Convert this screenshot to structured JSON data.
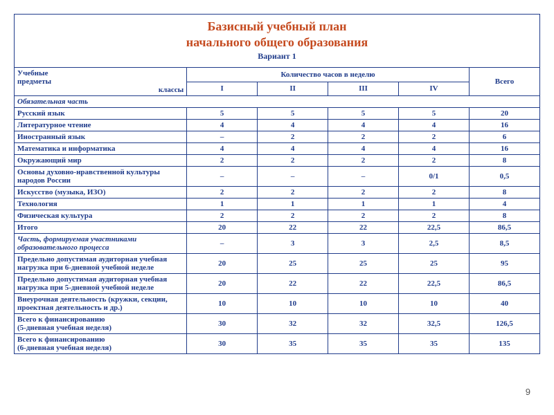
{
  "title_line1": "Базисный учебный  план",
  "title_line2": "начального общего образования",
  "variant": "Вариант  1",
  "header": {
    "subjects_label_1": "Учебные",
    "subjects_label_2": "предметы",
    "classes_label": "классы",
    "hours_label": "Количество часов в неделю",
    "total_label": "Всего",
    "cols": [
      "I",
      "II",
      "III",
      "IV"
    ]
  },
  "section1": "Обязательная часть",
  "rows": [
    {
      "label": "Русский язык",
      "v": [
        "5",
        "5",
        "5",
        "5",
        "20"
      ]
    },
    {
      "label": "Литературное чтение",
      "v": [
        "4",
        "4",
        "4",
        "4",
        "16"
      ]
    },
    {
      "label": "Иностранный язык",
      "v": [
        "–",
        "2",
        "2",
        "2",
        "6"
      ]
    },
    {
      "label": "Математика и информатика",
      "v": [
        "4",
        "4",
        "4",
        "4",
        "16"
      ]
    },
    {
      "label": "Окружающий мир",
      "v": [
        "2",
        "2",
        "2",
        "2",
        "8"
      ]
    },
    {
      "label": "Основы духовно-нравственной культуры народов России",
      "v": [
        "–",
        "–",
        "–",
        "0/1",
        "0,5"
      ]
    },
    {
      "label": "Искусство (музыка, ИЗО)",
      "v": [
        "2",
        "2",
        "2",
        "2",
        "8"
      ]
    },
    {
      "label": "Технология",
      "v": [
        "1",
        "1",
        "1",
        "1",
        "4"
      ]
    },
    {
      "label": "Физическая культура",
      "v": [
        "2",
        "2",
        "2",
        "2",
        "8"
      ]
    }
  ],
  "itogo": {
    "label": "Итого",
    "v": [
      "20",
      "22",
      "22",
      "22,5",
      "86,5"
    ]
  },
  "section2": {
    "label": "Часть, формируемая участниками образовательного процесса",
    "v": [
      "–",
      "3",
      "3",
      "2,5",
      "8,5"
    ]
  },
  "rows2": [
    {
      "label": "Предельно допустимая аудиторная учебная нагрузка при 6-дневной учебной неделе",
      "v": [
        "20",
        "25",
        "25",
        "25",
        "95"
      ]
    },
    {
      "label": "Предельно допустимая аудиторная учебная нагрузка при 5-дневной учебной неделе",
      "v": [
        "20",
        "22",
        "22",
        "22,5",
        "86,5"
      ]
    },
    {
      "label": "Внеурочная деятельность (кружки, секции, проектная деятельность и др.)",
      "v": [
        "10",
        "10",
        "10",
        "10",
        "40"
      ]
    },
    {
      "label": "Всего к финансированию\n (5-дневная учебная неделя)",
      "v": [
        "30",
        "32",
        "32",
        "32,5",
        "126,5"
      ]
    },
    {
      "label": "Всего к финансированию\n (6-дневная учебная неделя)",
      "v": [
        "30",
        "35",
        "35",
        "35",
        "135"
      ]
    }
  ],
  "page_number": "9",
  "colors": {
    "border": "#1f3b8a",
    "text": "#1f3b8a",
    "title": "#c54a1f",
    "background": "#ffffff"
  }
}
